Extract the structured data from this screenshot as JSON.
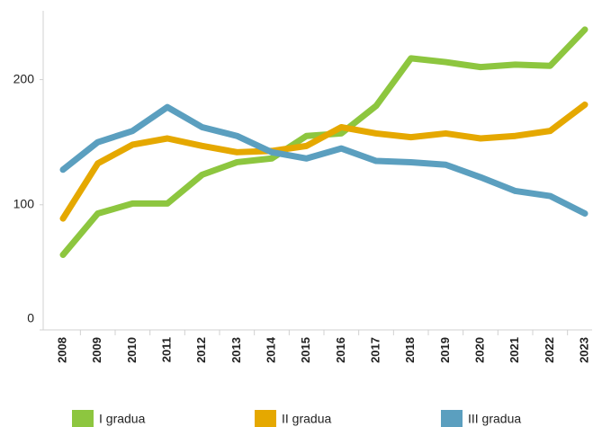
{
  "chart_data": {
    "type": "line",
    "categories": [
      "2008",
      "2009",
      "2010",
      "2011",
      "2012",
      "2013",
      "2014",
      "2015",
      "2016",
      "2017",
      "2018",
      "2019",
      "2020",
      "2021",
      "2022",
      "2023"
    ],
    "series": [
      {
        "name": "I gradua",
        "color": "#8dc63f",
        "values": [
          60,
          93,
          101,
          101,
          124,
          134,
          137,
          155,
          157,
          179,
          217,
          214,
          210,
          212,
          211,
          240
        ]
      },
      {
        "name": "II gradua",
        "color": "#e5a800",
        "values": [
          89,
          133,
          148,
          153,
          147,
          142,
          143,
          147,
          162,
          157,
          154,
          157,
          153,
          155,
          159,
          180
        ]
      },
      {
        "name": "III gradua",
        "color": "#5b9fbf",
        "values": [
          128,
          150,
          159,
          178,
          162,
          155,
          142,
          137,
          145,
          135,
          134,
          132,
          122,
          111,
          107,
          93
        ]
      }
    ],
    "ylim": [
      0,
      255
    ],
    "yticks": [
      0,
      100,
      200
    ],
    "grid": false,
    "legend": "bottom"
  }
}
